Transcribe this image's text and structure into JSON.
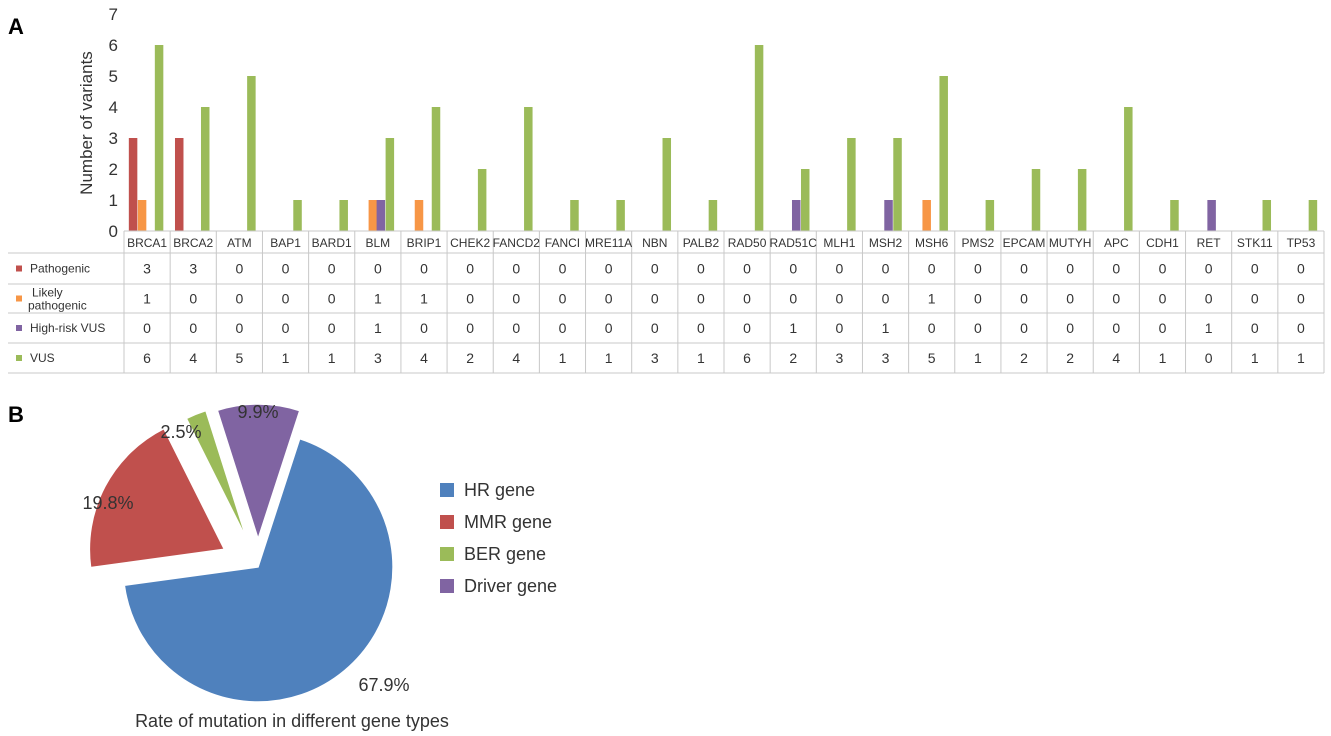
{
  "panels": {
    "a": "A",
    "b": "B"
  },
  "colors": {
    "pathogenic": "#c0504d",
    "likely_pathogenic": "#f79646",
    "high_risk_vus": "#8064a2",
    "vus": "#9bbb59",
    "hr": "#4f81bd",
    "mmr": "#c0504d",
    "ber": "#9bbb59",
    "driver": "#8064a2"
  },
  "chart_data": [
    {
      "type": "bar",
      "panel": "A",
      "ylabel": "Number of variants",
      "ylim": [
        0,
        7
      ],
      "yticks": [
        0,
        1,
        2,
        3,
        4,
        5,
        6,
        7
      ],
      "categories": [
        "BRCA1",
        "BRCA2",
        "ATM",
        "BAP1",
        "BARD1",
        "BLM",
        "BRIP1",
        "CHEK2",
        "FANCD2",
        "FANCI",
        "MRE11A",
        "NBN",
        "PALB2",
        "RAD50",
        "RAD51C",
        "MLH1",
        "MSH2",
        "MSH6",
        "PMS2",
        "EPCAM",
        "MUTYH",
        "APC",
        "CDH1",
        "RET",
        "STK11",
        "TP53"
      ],
      "series": [
        {
          "name": "Pathogenic",
          "color": "#c0504d",
          "values": [
            3,
            3,
            0,
            0,
            0,
            0,
            0,
            0,
            0,
            0,
            0,
            0,
            0,
            0,
            0,
            0,
            0,
            0,
            0,
            0,
            0,
            0,
            0,
            0,
            0,
            0
          ]
        },
        {
          "name": "Likely pathogenic",
          "color": "#f79646",
          "values": [
            1,
            0,
            0,
            0,
            0,
            1,
            1,
            0,
            0,
            0,
            0,
            0,
            0,
            0,
            0,
            0,
            0,
            1,
            0,
            0,
            0,
            0,
            0,
            0,
            0,
            0
          ]
        },
        {
          "name": "High-risk VUS",
          "color": "#8064a2",
          "values": [
            0,
            0,
            0,
            0,
            0,
            1,
            0,
            0,
            0,
            0,
            0,
            0,
            0,
            0,
            1,
            0,
            1,
            0,
            0,
            0,
            0,
            0,
            0,
            1,
            0,
            0
          ]
        },
        {
          "name": "VUS",
          "color": "#9bbb59",
          "values": [
            6,
            4,
            5,
            1,
            1,
            3,
            4,
            2,
            4,
            1,
            1,
            3,
            1,
            6,
            2,
            3,
            3,
            5,
            1,
            2,
            2,
            4,
            1,
            0,
            1,
            1
          ]
        }
      ],
      "legend": "data-table"
    },
    {
      "type": "pie",
      "panel": "B",
      "title": "Rate of mutation in different gene types",
      "labels": [
        "HR gene",
        "MMR gene",
        "BER gene",
        "Driver gene"
      ],
      "values": [
        67.9,
        19.8,
        2.5,
        9.9
      ],
      "value_labels": [
        "67.9%",
        "19.8%",
        "2.5%",
        "9.9%"
      ],
      "colors": [
        "#4f81bd",
        "#c0504d",
        "#9bbb59",
        "#8064a2"
      ],
      "legend": "right"
    }
  ]
}
